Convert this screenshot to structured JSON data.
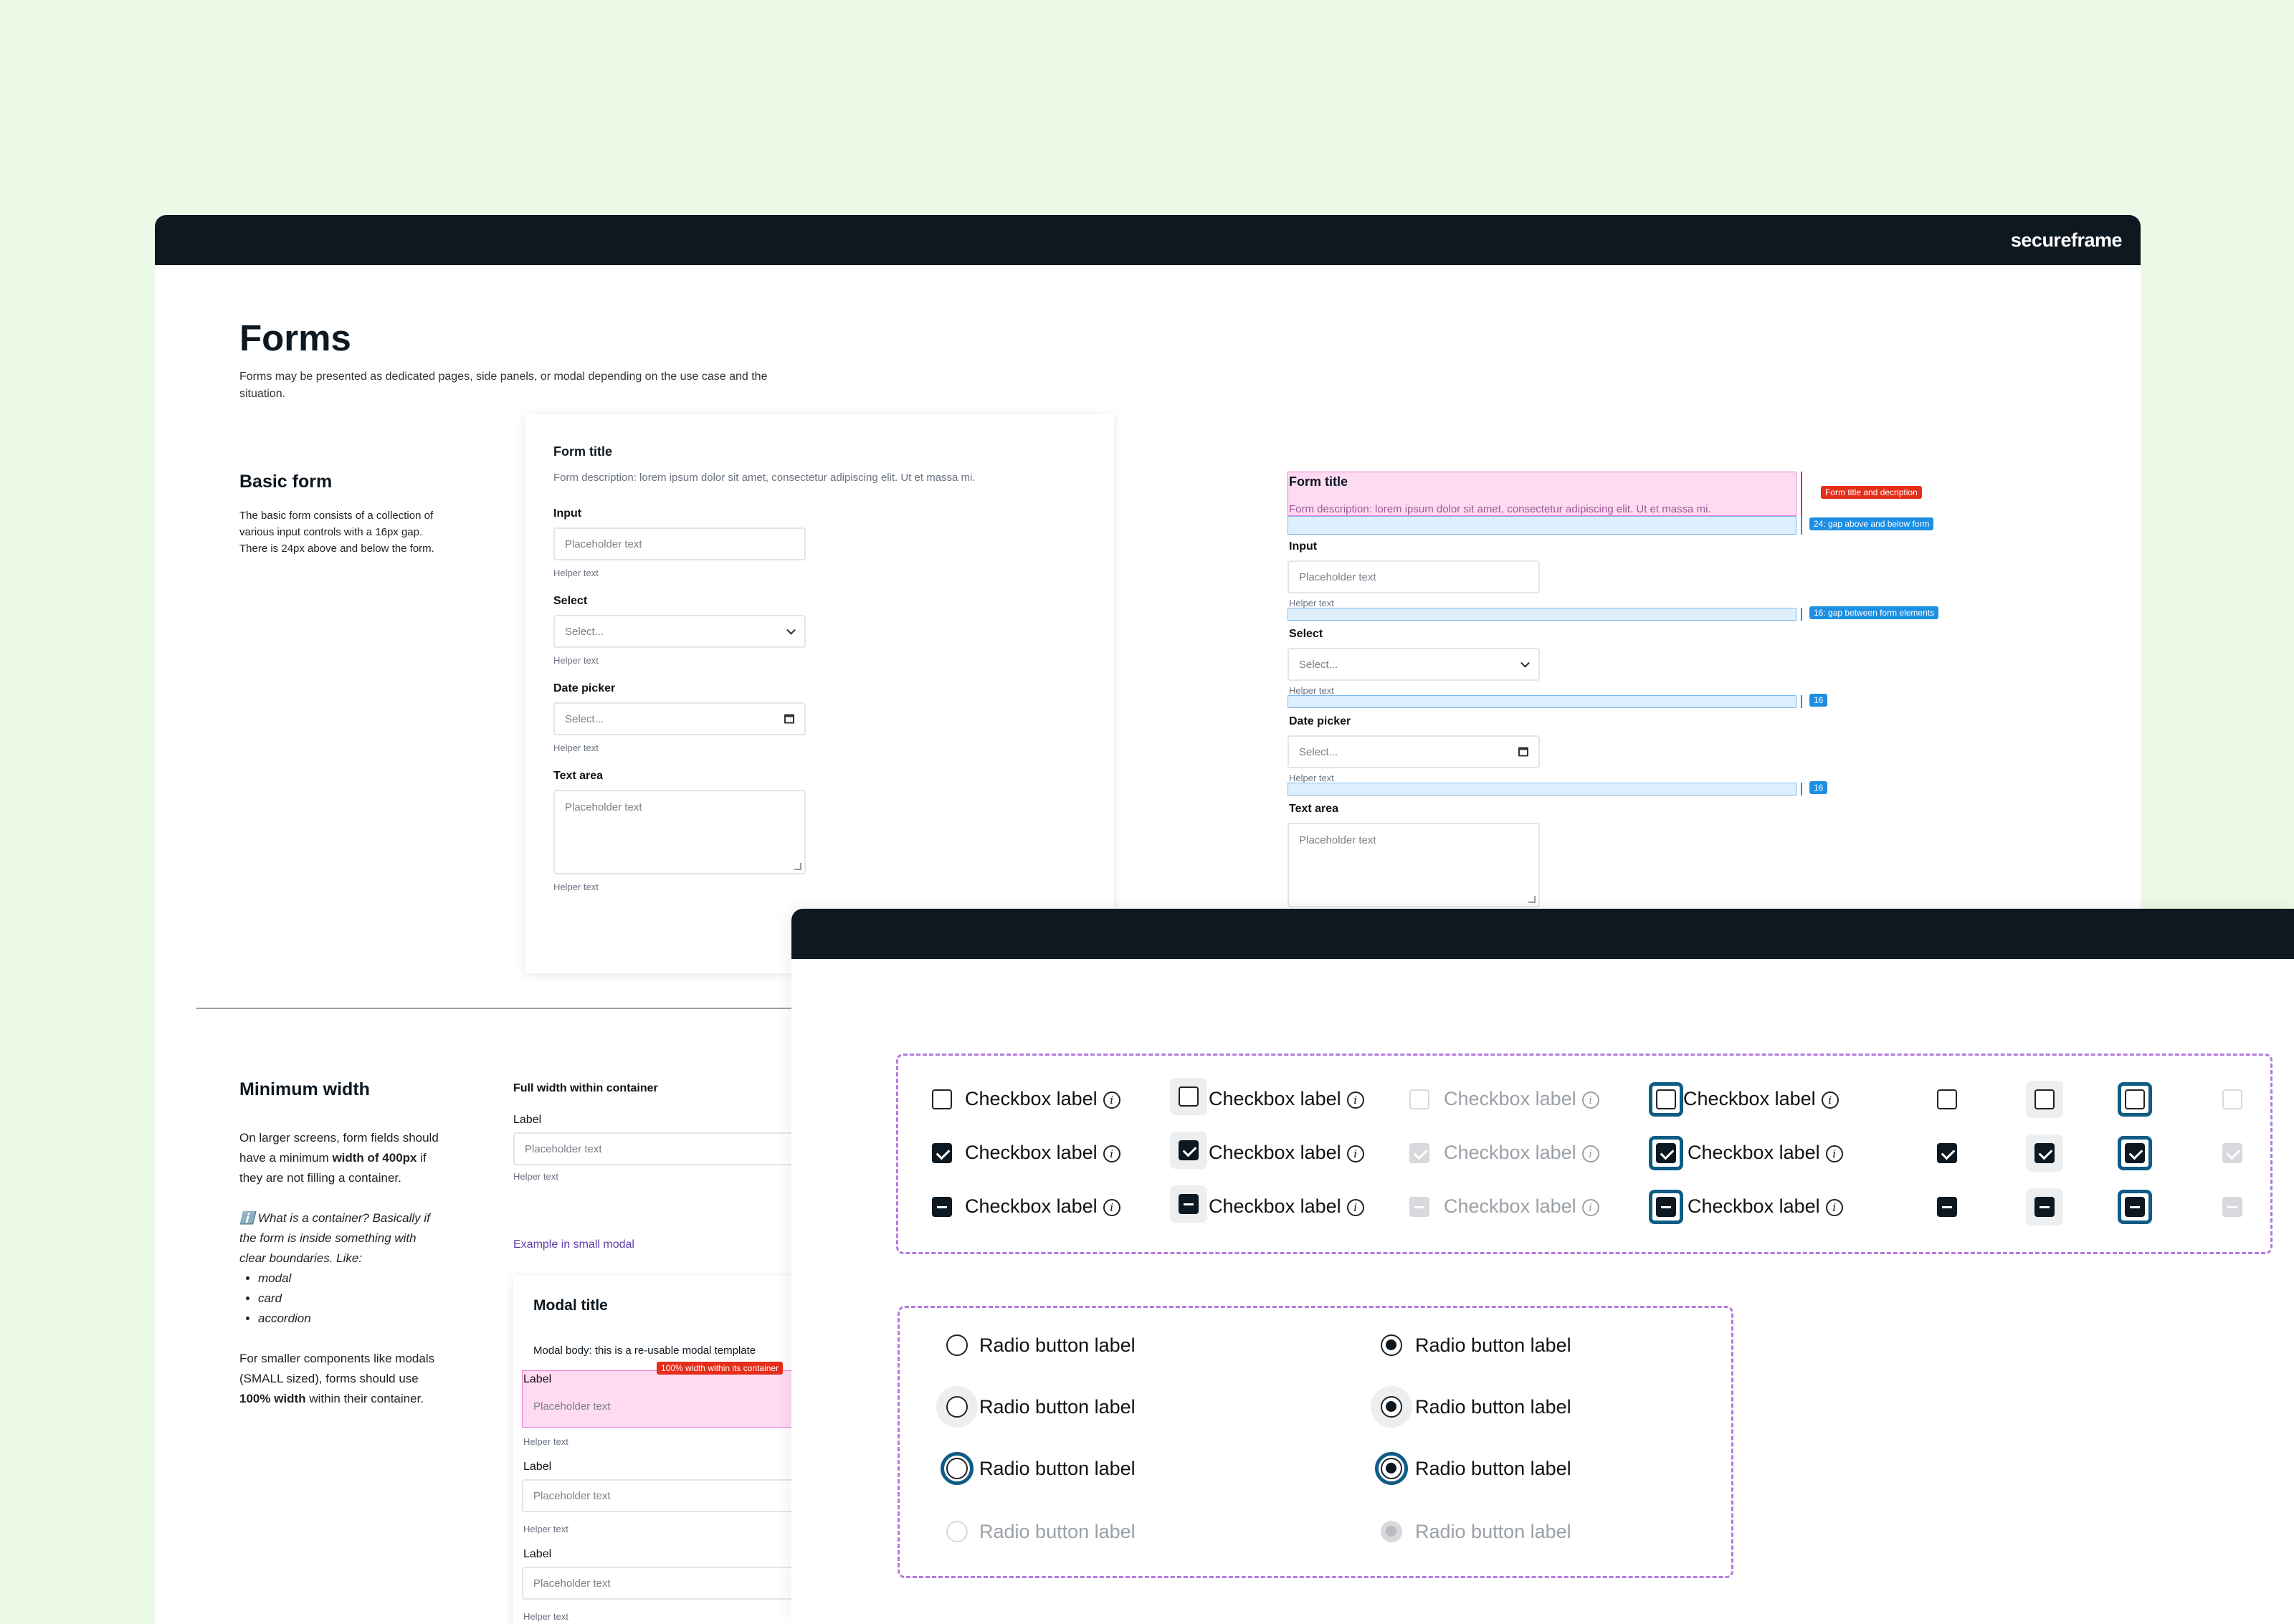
{
  "brand": "secureframe",
  "page": {
    "title": "Forms",
    "subtitle": "Forms may be presented as dedicated pages, side panels, or modal depending on the use case and the situation."
  },
  "basic_form": {
    "title": "Basic form",
    "description": "The basic form consists of a collection of various input controls with a 16px gap. There is 24px above and below the form."
  },
  "form": {
    "title": "Form title",
    "description": "Form description: lorem ipsum dolor sit amet, consectetur adipiscing elit. Ut et massa mi.",
    "input_label": "Input",
    "input_placeholder": "Placeholder text",
    "helper": "Helper text",
    "select_label": "Select",
    "select_placeholder": "Select...",
    "date_label": "Date picker",
    "date_placeholder": "Select...",
    "textarea_label": "Text area",
    "textarea_placeholder": "Placeholder text"
  },
  "annotations": {
    "title_desc": "Form title and decription",
    "gap24": "24: gap above and below form",
    "gap16": "16: gap between form elements",
    "n16": "16"
  },
  "min_width": {
    "title": "Minimum width",
    "p1_a": "On larger screens, form fields should have a minimum ",
    "p1_b": "width of 400px",
    "p1_c": " if they are not filling a container.",
    "q_icon": "ℹ️",
    "q": " What is a container? Basically if the form is inside something with clear boundaries. Like:",
    "items": [
      "modal",
      "card",
      "accordion"
    ],
    "p2_a": "For smaller components like modals (SMALL sized), forms should use ",
    "p2_b": "100% width",
    "p2_c": " within their container."
  },
  "full_width": {
    "title": "Full width within container",
    "label": "Label",
    "placeholder": "Placeholder text",
    "helper": "Helper text",
    "example_link": "Example in small modal"
  },
  "modal": {
    "title": "Modal title",
    "body": "Modal body: this is a re-usable modal template",
    "tag": "100% width within its container",
    "label": "Label",
    "placeholder": "Placeholder text",
    "helper": "Helper text"
  },
  "checkbox": {
    "label": "Checkbox label",
    "info_icon": "i"
  },
  "radio": {
    "label": "Radio button label"
  },
  "colors": {
    "dark": "#0d1821",
    "focus": "#0f5c85",
    "dash": "#b27be0",
    "bg": "#ebfae6"
  }
}
